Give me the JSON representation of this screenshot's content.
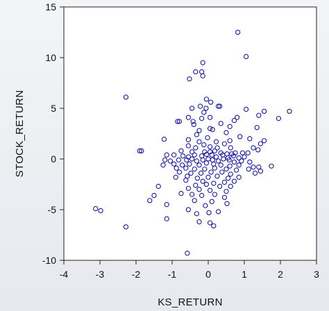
{
  "chart_data": {
    "type": "scatter",
    "title": "",
    "xlabel": "KS_RETURN",
    "ylabel": "STOCK_RETURN",
    "xlim": [
      -4,
      3
    ],
    "ylim": [
      -10,
      15
    ],
    "x_ticks": [
      "-4",
      "-3",
      "-2",
      "-1",
      "0",
      "1",
      "2",
      "3"
    ],
    "y_ticks": [
      "15",
      "10",
      "5",
      "0",
      "-5",
      "-10"
    ],
    "marker": "hollow-circle",
    "marker_color": "#1a1aa6",
    "grid": false,
    "legend": "none",
    "series": [
      {
        "points": [
          [
            0.82,
            12.5
          ],
          [
            1.05,
            10.1
          ],
          [
            -0.15,
            9.5
          ],
          [
            -0.18,
            8.6
          ],
          [
            -0.35,
            8.6
          ],
          [
            -0.15,
            8.2
          ],
          [
            -0.52,
            7.9
          ],
          [
            -2.28,
            6.1
          ],
          [
            -0.05,
            5.9
          ],
          [
            0.07,
            5.6
          ],
          [
            0.32,
            5.2
          ],
          [
            0.28,
            5.2
          ],
          [
            -0.22,
            5.2
          ],
          [
            -0.06,
            5.0
          ],
          [
            -0.45,
            5.0
          ],
          [
            1.05,
            4.9
          ],
          [
            1.55,
            4.7
          ],
          [
            2.25,
            4.7
          ],
          [
            1.4,
            4.3
          ],
          [
            -0.12,
            4.6
          ],
          [
            0.05,
            4.1
          ],
          [
            0.8,
            4.1
          ],
          [
            0.72,
            3.8
          ],
          [
            1.95,
            4.0
          ],
          [
            -0.18,
            4.0
          ],
          [
            -0.55,
            4.1
          ],
          [
            -0.85,
            3.7
          ],
          [
            -0.8,
            3.7
          ],
          [
            -0.42,
            3.7
          ],
          [
            0.35,
            3.5
          ],
          [
            0.6,
            3.2
          ],
          [
            1.35,
            3.1
          ],
          [
            0.05,
            3.0
          ],
          [
            -0.4,
            3.4
          ],
          [
            -0.25,
            2.8
          ],
          [
            0.12,
            2.9
          ],
          [
            0.5,
            2.6
          ],
          [
            0.88,
            2.2
          ],
          [
            1.15,
            2.0
          ],
          [
            -0.02,
            2.1
          ],
          [
            -0.32,
            2.4
          ],
          [
            -0.55,
            1.9
          ],
          [
            -1.22,
            1.95
          ],
          [
            -0.25,
            1.7
          ],
          [
            0.22,
            1.7
          ],
          [
            0.45,
            1.5
          ],
          [
            0.6,
            1.8
          ],
          [
            1.45,
            1.5
          ],
          [
            1.55,
            1.8
          ],
          [
            -0.12,
            1.4
          ],
          [
            -0.55,
            1.3
          ],
          [
            -0.35,
            1.1
          ],
          [
            0.05,
            1.2
          ],
          [
            0.25,
            1.1
          ],
          [
            0.62,
            1.1
          ],
          [
            1.25,
            1.1
          ],
          [
            1.38,
            0.9
          ],
          [
            -1.9,
            0.8
          ],
          [
            -1.85,
            0.8
          ],
          [
            -0.75,
            0.8
          ],
          [
            -0.45,
            0.7
          ],
          [
            -0.1,
            0.7
          ],
          [
            0.05,
            0.7
          ],
          [
            0.18,
            0.8
          ],
          [
            0.35,
            0.6
          ],
          [
            0.52,
            0.5
          ],
          [
            0.65,
            0.5
          ],
          [
            0.75,
            0.6
          ],
          [
            0.95,
            0.6
          ],
          [
            1.1,
            0.6
          ],
          [
            -1.15,
            0.4
          ],
          [
            -0.95,
            0.4
          ],
          [
            -0.7,
            0.3
          ],
          [
            -0.55,
            0.2
          ],
          [
            -0.38,
            0.4
          ],
          [
            -0.18,
            0.3
          ],
          [
            -0.05,
            0.45
          ],
          [
            0.1,
            0.4
          ],
          [
            0.22,
            0.2
          ],
          [
            0.4,
            0.4
          ],
          [
            0.55,
            0.1
          ],
          [
            0.7,
            0.3
          ],
          [
            0.85,
            0.1
          ],
          [
            1.0,
            0.2
          ],
          [
            -1.2,
            -0.1
          ],
          [
            -1.05,
            -0.2
          ],
          [
            -0.82,
            -0.1
          ],
          [
            -0.6,
            -0.1
          ],
          [
            -0.45,
            0.0
          ],
          [
            -0.32,
            -0.2
          ],
          [
            -0.15,
            -0.1
          ],
          [
            0.0,
            0.0
          ],
          [
            0.12,
            -0.1
          ],
          [
            0.28,
            -0.2
          ],
          [
            0.42,
            0.0
          ],
          [
            0.58,
            -0.1
          ],
          [
            0.72,
            -0.3
          ],
          [
            0.92,
            -0.2
          ],
          [
            1.15,
            -0.3
          ],
          [
            -1.25,
            -0.6
          ],
          [
            -0.95,
            -0.5
          ],
          [
            -0.72,
            -0.6
          ],
          [
            -0.52,
            -0.5
          ],
          [
            -0.25,
            -0.6
          ],
          [
            -0.05,
            -0.4
          ],
          [
            0.15,
            -0.5
          ],
          [
            0.35,
            -0.6
          ],
          [
            0.6,
            -0.7
          ],
          [
            0.85,
            -0.6
          ],
          [
            -0.88,
            -0.9
          ],
          [
            -0.62,
            -0.9
          ],
          [
            -0.38,
            -1.0
          ],
          [
            -0.1,
            -1.0
          ],
          [
            0.18,
            -0.9
          ],
          [
            0.5,
            -1.0
          ],
          [
            0.78,
            -1.1
          ],
          [
            1.25,
            -0.8
          ],
          [
            1.4,
            -0.8
          ],
          [
            1.75,
            -0.7
          ],
          [
            -0.8,
            -1.3
          ],
          [
            -0.48,
            -1.4
          ],
          [
            -0.2,
            -1.4
          ],
          [
            0.08,
            -1.3
          ],
          [
            0.38,
            -1.3
          ],
          [
            0.62,
            -1.5
          ],
          [
            1.3,
            -1.4
          ],
          [
            1.45,
            -1.2
          ],
          [
            1.12,
            -1.0
          ],
          [
            -0.9,
            -1.8
          ],
          [
            -0.58,
            -1.7
          ],
          [
            -0.3,
            -1.9
          ],
          [
            0.0,
            -1.8
          ],
          [
            0.25,
            -1.7
          ],
          [
            0.55,
            -1.9
          ],
          [
            0.85,
            -1.8
          ],
          [
            -0.62,
            -2.1
          ],
          [
            -0.15,
            -2.2
          ],
          [
            0.15,
            -2.4
          ],
          [
            0.45,
            -2.3
          ],
          [
            0.72,
            -2.2
          ],
          [
            -1.38,
            -2.7
          ],
          [
            -0.35,
            -2.6
          ],
          [
            -0.05,
            -2.5
          ],
          [
            0.32,
            -2.7
          ],
          [
            0.62,
            -2.7
          ],
          [
            -0.55,
            -2.9
          ],
          [
            -0.25,
            -3.0
          ],
          [
            0.05,
            -3.1
          ],
          [
            0.5,
            -3.2
          ],
          [
            -1.5,
            -3.6
          ],
          [
            -0.75,
            -3.4
          ],
          [
            -0.45,
            -3.5
          ],
          [
            -0.18,
            -3.6
          ],
          [
            0.18,
            -3.5
          ],
          [
            0.45,
            -3.8
          ],
          [
            -1.62,
            -4.1
          ],
          [
            -0.38,
            -4.1
          ],
          [
            0.1,
            -4.2
          ],
          [
            0.52,
            -4.4
          ],
          [
            -1.15,
            -4.5
          ],
          [
            -0.08,
            -4.6
          ],
          [
            -3.12,
            -4.9
          ],
          [
            -2.98,
            -5.1
          ],
          [
            -0.55,
            -5.0
          ],
          [
            -0.32,
            -5.4
          ],
          [
            0.02,
            -5.3
          ],
          [
            0.28,
            -5.2
          ],
          [
            -1.15,
            -5.9
          ],
          [
            -0.25,
            -6.2
          ],
          [
            0.05,
            -6.3
          ],
          [
            0.15,
            -6.6
          ],
          [
            -2.28,
            -6.7
          ],
          [
            -0.58,
            -9.3
          ]
        ]
      }
    ]
  }
}
